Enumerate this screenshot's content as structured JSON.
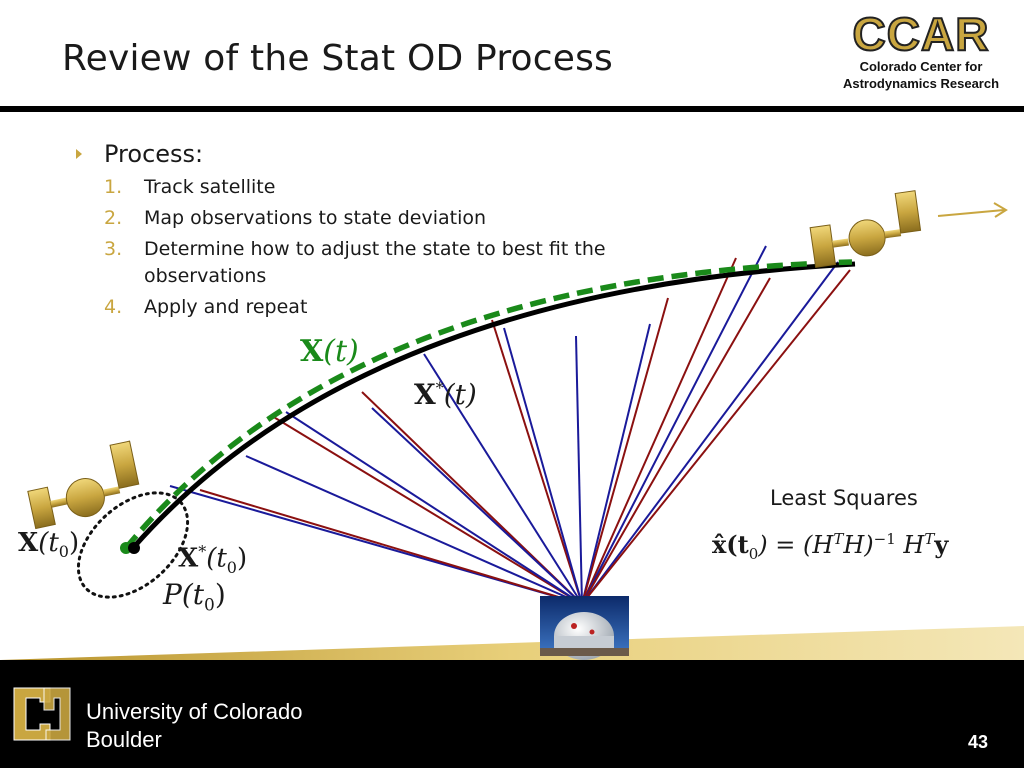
{
  "slide": {
    "title": "Review of the Stat OD Process",
    "page_number": "43"
  },
  "logo": {
    "mark": "CCAR",
    "line1": "Colorado Center for",
    "line2": "Astrodynamics Research"
  },
  "content": {
    "bullet": "Process:",
    "steps": [
      {
        "num": "1.",
        "text": "Track satellite"
      },
      {
        "num": "2.",
        "text": "Map observations to state deviation"
      },
      {
        "num": "3.",
        "text": "Determine how to adjust the state to best fit the observations"
      },
      {
        "num": "4.",
        "text": "Apply and repeat"
      }
    ]
  },
  "diagram": {
    "labels": {
      "true_traj_base": "X",
      "true_traj_arg": "(t)",
      "ref_traj_base": "X",
      "ref_traj_sup": "*",
      "ref_traj_arg": "(t)",
      "init_state_base": "X",
      "init_state_arg_open": "(t",
      "init_state_sub": "0",
      "init_state_arg_close": ")",
      "init_ref_base": "X",
      "init_ref_sup": "*",
      "init_ref_arg_open": "(t",
      "init_ref_sub": "0",
      "init_ref_arg_close": ")",
      "cov_base": "P",
      "cov_arg_open": "(t",
      "cov_sub": "0",
      "cov_arg_close": ")"
    },
    "least_squares": {
      "label": "Least Squares",
      "eq_lhs": "x̂(t",
      "eq_lhs_sub": "0",
      "eq_mid": ") = (H",
      "eq_T1": "T",
      "eq_H": "H)",
      "eq_inv": "−1",
      "eq_H2": " H",
      "eq_T2": "T",
      "eq_y": "y"
    },
    "colors": {
      "true_trajectory": "#1a8a1a",
      "reference_trajectory": "#000000",
      "obs_red": "#8b1010",
      "obs_blue": "#1a1a9a",
      "gold": "#c9a640"
    }
  },
  "footer": {
    "university_line1": "University of Colorado",
    "university_line2": "Boulder",
    "logo_icon": "cu-logo-icon"
  }
}
